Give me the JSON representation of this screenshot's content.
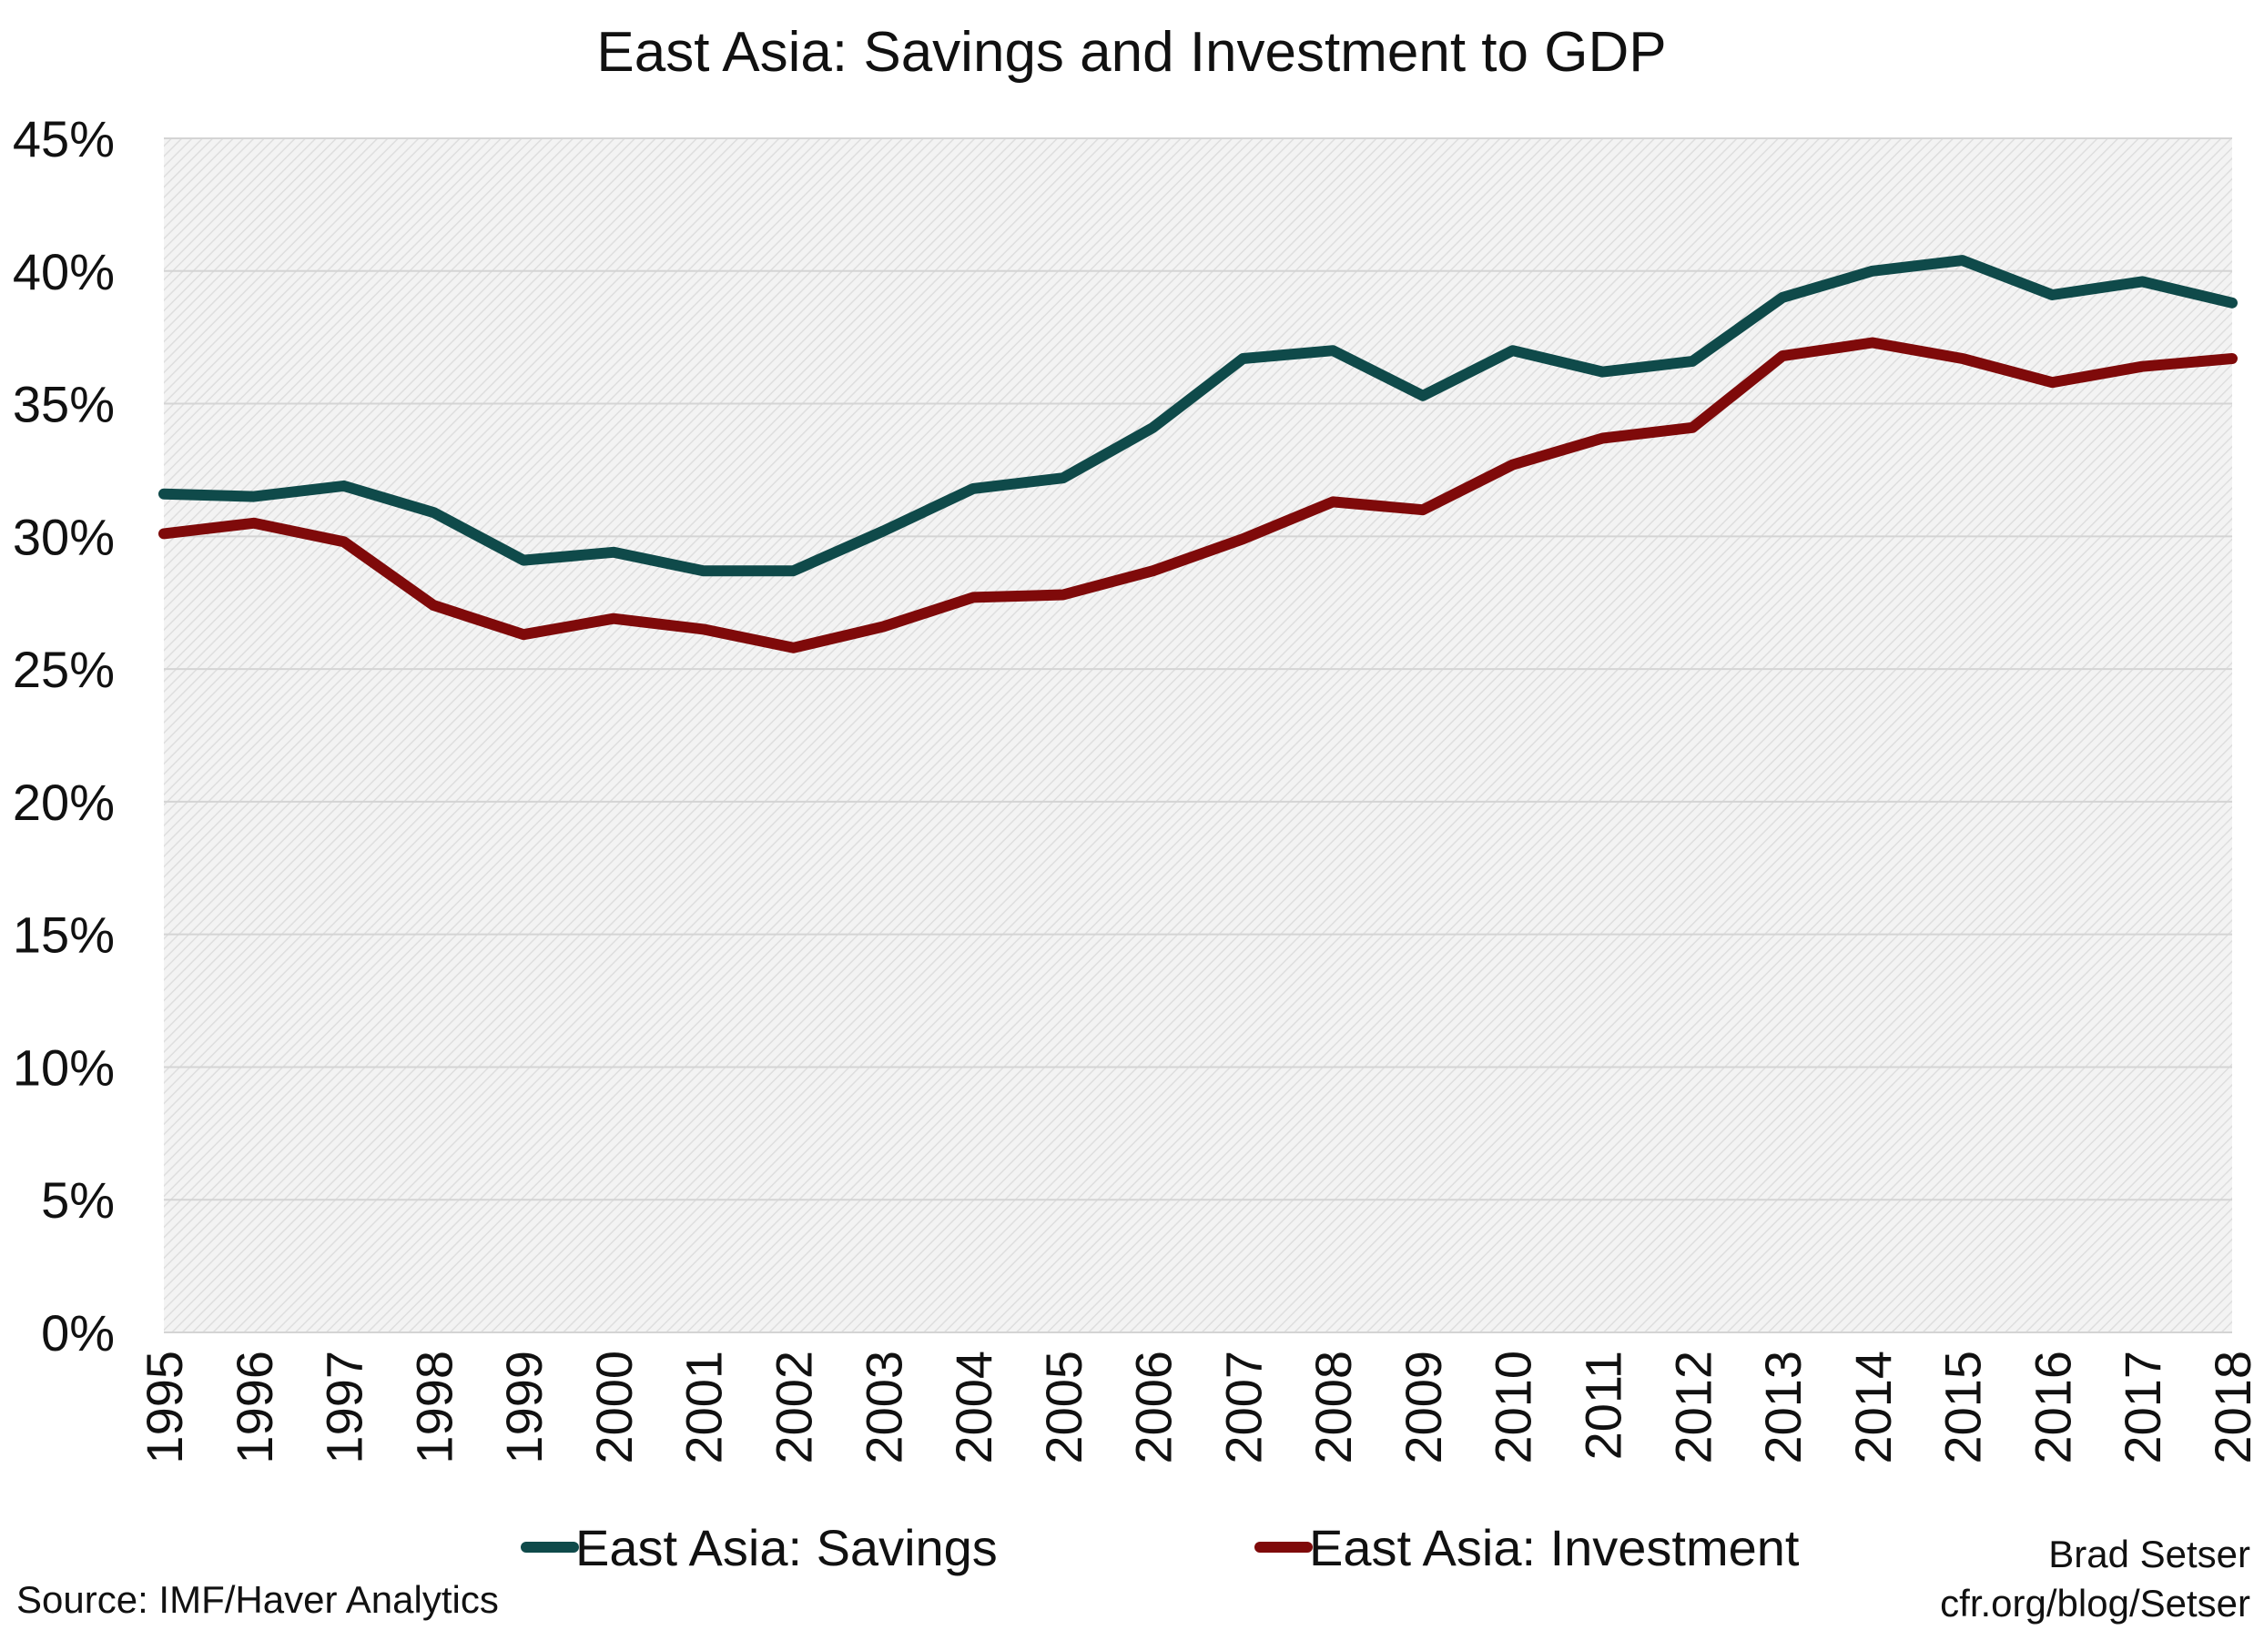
{
  "chart_data": {
    "type": "line",
    "title": "East Asia: Savings and Investment to GDP",
    "x": [
      "1995",
      "1996",
      "1997",
      "1998",
      "1999",
      "2000",
      "2001",
      "2002",
      "2003",
      "2004",
      "2005",
      "2006",
      "2007",
      "2008",
      "2009",
      "2010",
      "2011",
      "2012",
      "2013",
      "2014",
      "2015",
      "2016",
      "2017",
      "2018"
    ],
    "y_ticks": [
      "0%",
      "5%",
      "10%",
      "15%",
      "20%",
      "25%",
      "30%",
      "35%",
      "40%",
      "45%"
    ],
    "ylim": [
      0,
      45
    ],
    "grid": true,
    "legend_position": "bottom",
    "series": [
      {
        "name": "East Asia: Savings",
        "color": "#0f4a4a",
        "values": [
          31.6,
          31.5,
          31.9,
          30.9,
          29.1,
          29.4,
          28.7,
          28.7,
          30.2,
          31.8,
          32.2,
          34.1,
          36.7,
          37.0,
          35.3,
          37.0,
          36.2,
          36.6,
          39.0,
          40.0,
          40.4,
          39.1,
          39.6,
          38.8
        ]
      },
      {
        "name": "East Asia: Investment",
        "color": "#7f0a0a",
        "values": [
          30.1,
          30.5,
          29.8,
          27.4,
          26.3,
          26.9,
          26.5,
          25.8,
          26.6,
          27.7,
          27.8,
          28.7,
          29.9,
          31.3,
          31.0,
          32.7,
          33.7,
          34.1,
          36.8,
          37.3,
          36.7,
          35.8,
          36.4,
          36.7
        ]
      }
    ]
  },
  "notes": {
    "source": "Source: IMF/Haver Analytics",
    "author": "Brad Setser",
    "url": "cfr.org/blog/Setser"
  }
}
